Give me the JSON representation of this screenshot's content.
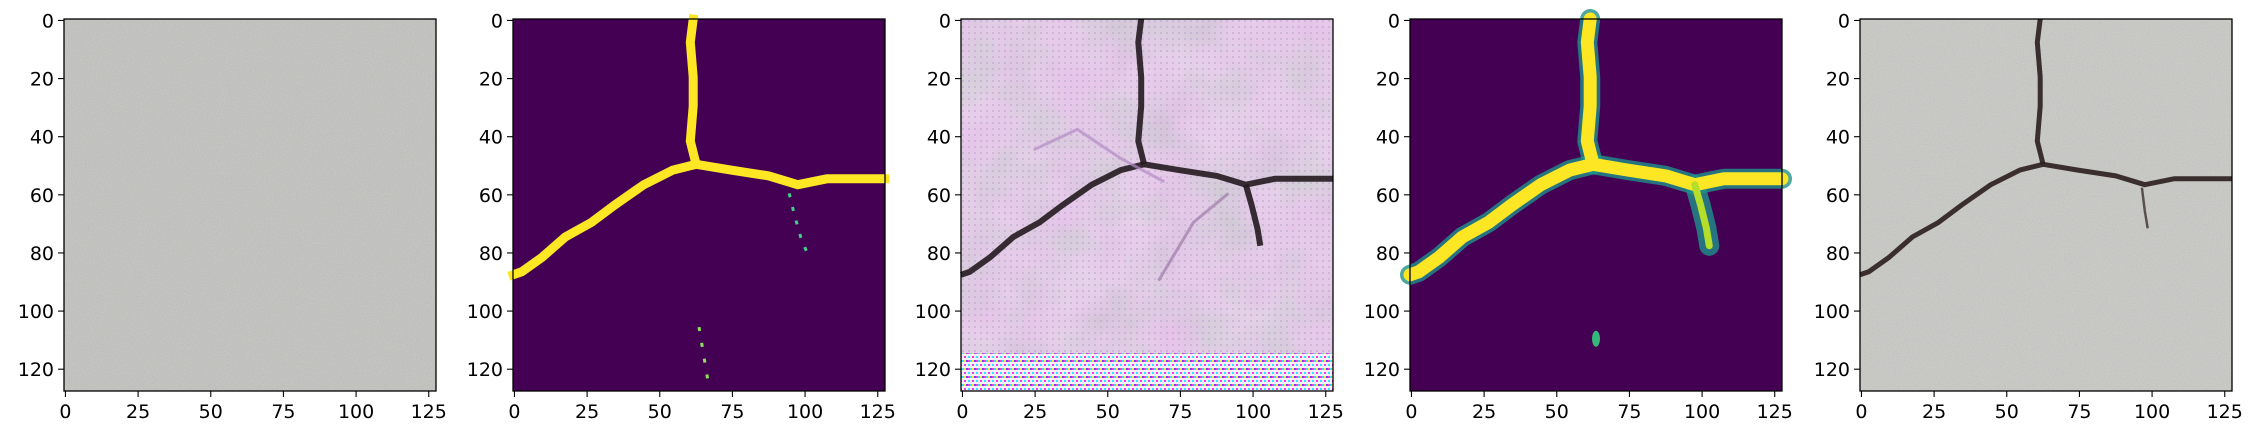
{
  "figure": {
    "panels": [
      {
        "id": "input-concrete-image",
        "kind": "photo"
      },
      {
        "id": "ground-truth-mask",
        "kind": "mask"
      },
      {
        "id": "generated-image",
        "kind": "artifact"
      },
      {
        "id": "predicted-mask",
        "kind": "soft-mask"
      },
      {
        "id": "crack-photo",
        "kind": "photo-crack"
      }
    ],
    "x_ticks": [
      "0",
      "25",
      "50",
      "75",
      "100",
      "125"
    ],
    "x_tick_values": [
      0,
      25,
      50,
      75,
      100,
      125
    ],
    "y_ticks": [
      "0",
      "20",
      "40",
      "60",
      "80",
      "100",
      "120"
    ],
    "y_tick_values": [
      0,
      20,
      40,
      60,
      80,
      100,
      120
    ],
    "extent": [
      0,
      128
    ],
    "colors": {
      "viridis_low": "#440154",
      "viridis_high": "#fde725",
      "viridis_mid": "#21918c",
      "concrete": "#c9c9c6",
      "crack": "#2a1e1e",
      "artifact_bg": "#e6d6ea"
    }
  }
}
